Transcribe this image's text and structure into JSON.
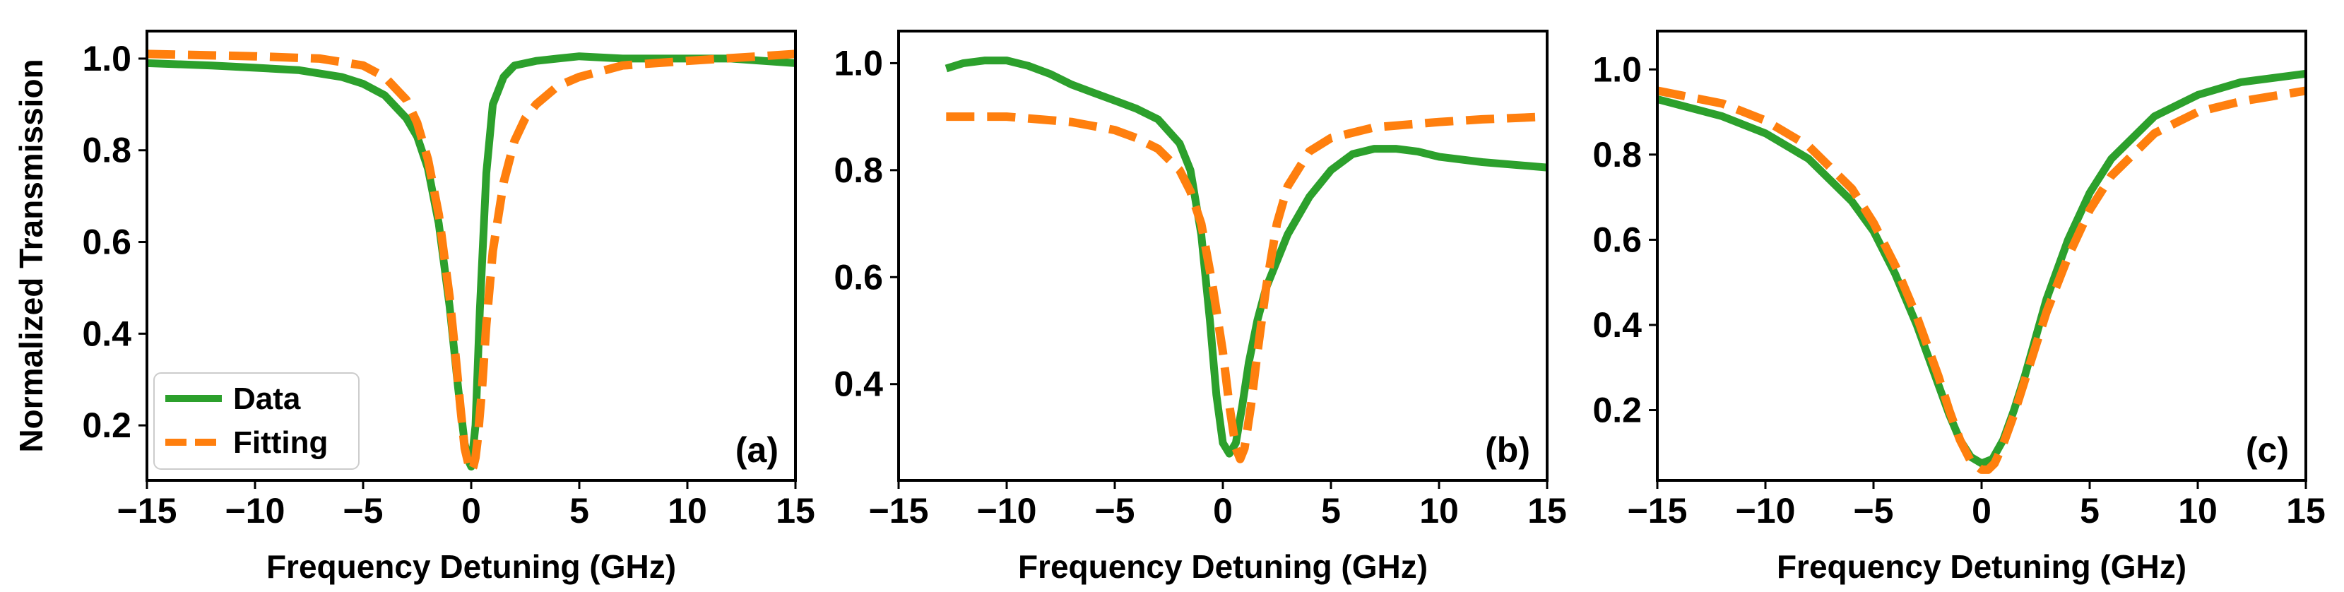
{
  "colors": {
    "data": "#2ca02c",
    "fitting": "#ff7f0e",
    "axis": "#000000",
    "background": "#ffffff"
  },
  "chart_data": [
    {
      "type": "line",
      "panel_label": "(a)",
      "xlabel": "Frequency Detuning (GHz)",
      "ylabel": "Normalized Transmission",
      "xlim": [
        -15,
        15
      ],
      "ylim": [
        0.08,
        1.06
      ],
      "xticks": [
        -15,
        -10,
        -5,
        0,
        5,
        10,
        15
      ],
      "xtick_labels": [
        "−15",
        "−10",
        "−5",
        "0",
        "5",
        "10",
        "15"
      ],
      "yticks": [
        0.2,
        0.4,
        0.6,
        0.8,
        1.0
      ],
      "ytick_labels": [
        "0.2",
        "0.4",
        "0.6",
        "0.8",
        "1.0"
      ],
      "legend": {
        "placement": "lower-left",
        "entries": [
          "Data",
          "Fitting"
        ]
      },
      "series": [
        {
          "name": "Data",
          "style": "solid",
          "x": [
            -15,
            -12,
            -10,
            -8,
            -6,
            -5,
            -4,
            -3,
            -2.5,
            -2,
            -1.5,
            -1,
            -0.6,
            -0.3,
            -0.1,
            0,
            0.2,
            0.4,
            0.7,
            1,
            1.5,
            2,
            3,
            4,
            5,
            7,
            10,
            12,
            15
          ],
          "y": [
            0.99,
            0.985,
            0.98,
            0.975,
            0.96,
            0.945,
            0.92,
            0.87,
            0.83,
            0.76,
            0.64,
            0.46,
            0.28,
            0.16,
            0.12,
            0.11,
            0.2,
            0.45,
            0.75,
            0.9,
            0.96,
            0.985,
            0.995,
            1.0,
            1.005,
            1.0,
            1.0,
            1.0,
            0.99
          ]
        },
        {
          "name": "Fitting",
          "style": "dashed",
          "x": [
            -15,
            -10,
            -7,
            -5,
            -4,
            -3,
            -2.5,
            -2,
            -1.5,
            -1,
            -0.7,
            -0.5,
            -0.3,
            -0.1,
            0,
            0.1,
            0.2,
            0.3,
            0.5,
            0.7,
            1,
            1.5,
            2,
            2.5,
            3,
            4,
            5,
            7,
            10,
            15
          ],
          "y": [
            1.01,
            1.005,
            1.0,
            0.985,
            0.96,
            0.91,
            0.86,
            0.78,
            0.66,
            0.48,
            0.34,
            0.24,
            0.15,
            0.11,
            0.1,
            0.11,
            0.13,
            0.17,
            0.28,
            0.42,
            0.58,
            0.73,
            0.82,
            0.87,
            0.9,
            0.94,
            0.96,
            0.985,
            0.995,
            1.01
          ]
        }
      ]
    },
    {
      "type": "line",
      "panel_label": "(b)",
      "xlabel": "Frequency Detuning (GHz)",
      "ylabel": "",
      "xlim": [
        -15,
        15
      ],
      "ylim": [
        0.22,
        1.06
      ],
      "xticks": [
        -15,
        -10,
        -5,
        0,
        5,
        10,
        15
      ],
      "xtick_labels": [
        "−15",
        "−10",
        "−5",
        "0",
        "5",
        "10",
        "15"
      ],
      "yticks": [
        0.4,
        0.6,
        0.8,
        1.0
      ],
      "ytick_labels": [
        "0.4",
        "0.6",
        "0.8",
        "1.0"
      ],
      "series": [
        {
          "name": "Data",
          "style": "solid",
          "x": [
            -12.8,
            -12,
            -11,
            -10,
            -9,
            -8,
            -7,
            -6,
            -5,
            -4,
            -3,
            -2,
            -1.5,
            -1,
            -0.6,
            -0.3,
            0,
            0.3,
            0.6,
            0.9,
            1.2,
            1.6,
            2,
            3,
            4,
            5,
            6,
            7,
            8,
            9,
            10,
            12,
            15
          ],
          "y": [
            0.99,
            1.0,
            1.005,
            1.005,
            0.995,
            0.98,
            0.96,
            0.945,
            0.93,
            0.915,
            0.895,
            0.85,
            0.8,
            0.68,
            0.52,
            0.38,
            0.29,
            0.27,
            0.29,
            0.36,
            0.44,
            0.52,
            0.58,
            0.68,
            0.75,
            0.8,
            0.83,
            0.84,
            0.84,
            0.835,
            0.825,
            0.815,
            0.805
          ]
        },
        {
          "name": "Fitting",
          "style": "dashed",
          "x": [
            -12.8,
            -10,
            -7,
            -5,
            -4,
            -3,
            -2,
            -1.5,
            -1,
            -0.5,
            0,
            0.3,
            0.6,
            0.8,
            1,
            1.3,
            1.6,
            2,
            2.5,
            3,
            4,
            5,
            7,
            10,
            12,
            15
          ],
          "y": [
            0.9,
            0.9,
            0.89,
            0.875,
            0.86,
            0.84,
            0.8,
            0.76,
            0.7,
            0.59,
            0.46,
            0.36,
            0.28,
            0.26,
            0.28,
            0.36,
            0.46,
            0.58,
            0.7,
            0.77,
            0.835,
            0.86,
            0.88,
            0.89,
            0.895,
            0.9
          ]
        }
      ]
    },
    {
      "type": "line",
      "panel_label": "(c)",
      "xlabel": "Frequency Detuning (GHz)",
      "ylabel": "",
      "xlim": [
        -15,
        15
      ],
      "ylim": [
        0.035,
        1.09
      ],
      "xticks": [
        -15,
        -10,
        -5,
        0,
        5,
        10,
        15
      ],
      "xtick_labels": [
        "−15",
        "−10",
        "−5",
        "0",
        "5",
        "10",
        "15"
      ],
      "yticks": [
        0.2,
        0.4,
        0.6,
        0.8,
        1.0
      ],
      "ytick_labels": [
        "0.2",
        "0.4",
        "0.6",
        "0.8",
        "1.0"
      ],
      "series": [
        {
          "name": "Data",
          "style": "solid",
          "x": [
            -15,
            -12,
            -10,
            -8,
            -6,
            -5,
            -4,
            -3,
            -2,
            -1.5,
            -1,
            -0.5,
            0,
            0.5,
            1,
            1.5,
            2,
            3,
            4,
            5,
            6,
            8,
            10,
            12,
            15
          ],
          "y": [
            0.93,
            0.89,
            0.85,
            0.79,
            0.69,
            0.62,
            0.52,
            0.4,
            0.26,
            0.19,
            0.13,
            0.09,
            0.075,
            0.085,
            0.13,
            0.2,
            0.28,
            0.46,
            0.6,
            0.71,
            0.79,
            0.89,
            0.94,
            0.97,
            0.99
          ]
        },
        {
          "name": "Fitting",
          "style": "dashed",
          "x": [
            -15,
            -12,
            -10,
            -8,
            -6,
            -5,
            -4,
            -3,
            -2,
            -1.5,
            -1,
            -0.5,
            0,
            0.3,
            0.6,
            1,
            1.5,
            2,
            3,
            4,
            5,
            6,
            8,
            10,
            12,
            15
          ],
          "y": [
            0.95,
            0.92,
            0.88,
            0.82,
            0.72,
            0.64,
            0.54,
            0.42,
            0.28,
            0.2,
            0.13,
            0.08,
            0.06,
            0.06,
            0.075,
            0.12,
            0.19,
            0.27,
            0.43,
            0.56,
            0.67,
            0.75,
            0.85,
            0.9,
            0.925,
            0.95
          ]
        }
      ]
    }
  ]
}
